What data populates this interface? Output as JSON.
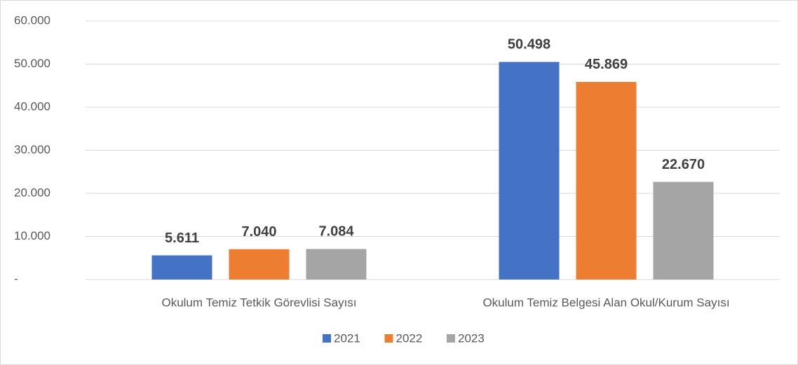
{
  "chart_data": {
    "type": "bar",
    "categories": [
      "Okulum Temiz Tetkik Görevlisi Sayısı",
      "Okulum Temiz Belgesi Alan Okul/Kurum Sayısı"
    ],
    "series": [
      {
        "name": "2021",
        "color": "#4472c4",
        "values": [
          5611,
          50498
        ],
        "value_labels": [
          "5.611",
          "50.498"
        ]
      },
      {
        "name": "2022",
        "color": "#ed7d31",
        "values": [
          7040,
          45869
        ],
        "value_labels": [
          "7.040",
          "45.869"
        ]
      },
      {
        "name": "2023",
        "color": "#a5a5a5",
        "values": [
          7084,
          22670
        ],
        "value_labels": [
          "7.084",
          "22.670"
        ]
      }
    ],
    "ylim": [
      0,
      60000
    ],
    "yticks": [
      {
        "value": 0,
        "label": "-"
      },
      {
        "value": 10000,
        "label": "10.000"
      },
      {
        "value": 20000,
        "label": "20.000"
      },
      {
        "value": 30000,
        "label": "30.000"
      },
      {
        "value": 40000,
        "label": "40.000"
      },
      {
        "value": 50000,
        "label": "50.000"
      },
      {
        "value": 60000,
        "label": "60.000"
      }
    ],
    "grid": true,
    "legend": "bottom"
  }
}
